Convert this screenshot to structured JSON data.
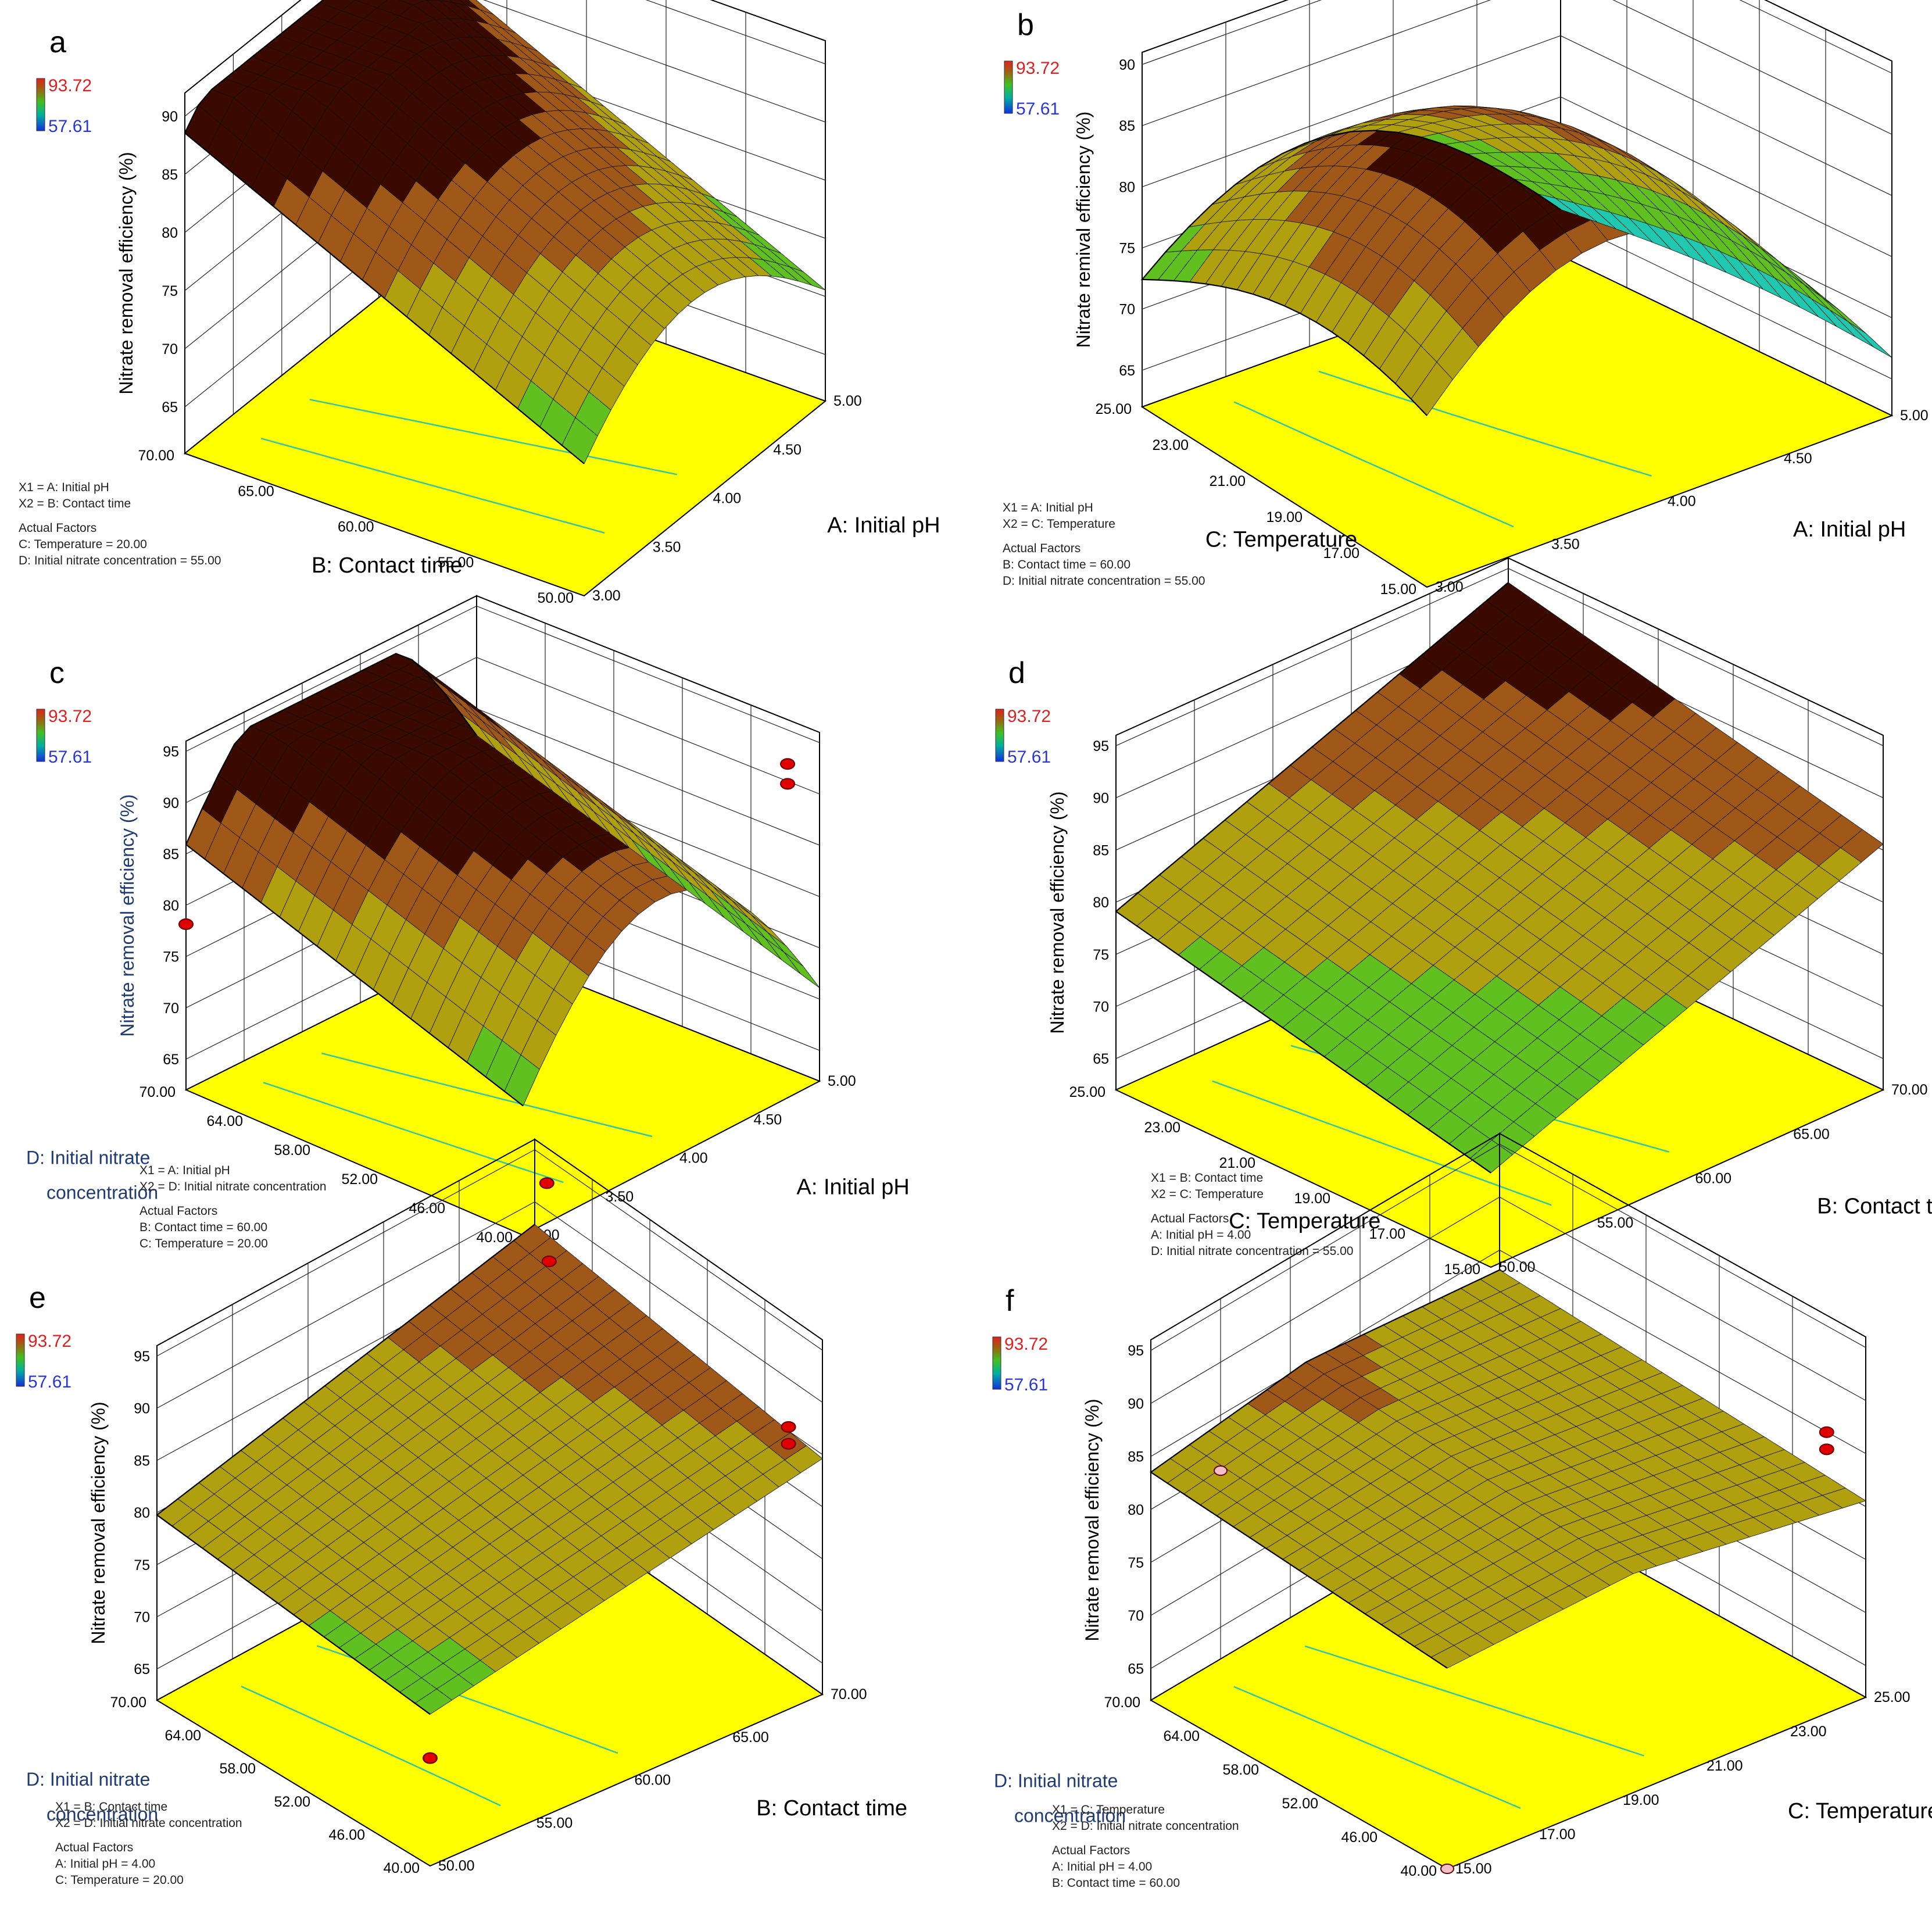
{
  "figure": {
    "colorbar_max": "93.72",
    "colorbar_min": "57.61",
    "surface_colors": [
      "#00c8c8",
      "#28d028",
      "#c8c000",
      "#b86020",
      "#300000"
    ]
  },
  "chart_data": [
    {
      "panel": "a",
      "type": "surface3d",
      "zlabel": "Nitrate removal efficiency (%)",
      "z_ticks": [
        "65",
        "70",
        "75",
        "80",
        "85",
        "90"
      ],
      "zlim": [
        61,
        92
      ],
      "left_axis": {
        "title": "B: Contact time",
        "ticks": [
          "70.00",
          "65.00",
          "60.00",
          "55.00",
          "50.00"
        ]
      },
      "right_axis": {
        "title": "A: Initial pH",
        "ticks": [
          "3.00",
          "3.50",
          "4.00",
          "4.50",
          "5.00"
        ]
      },
      "factors": [
        "X1 = A: Initial pH",
        "X2 = B: Contact time",
        "Actual Factors",
        "C: Temperature = 20.00",
        "D: Initial nitrate concentration = 55.00"
      ]
    },
    {
      "panel": "b",
      "type": "surface3d",
      "zlabel": "Nitrate remival efficiency (%)",
      "z_ticks": [
        "65",
        "70",
        "75",
        "80",
        "85",
        "90"
      ],
      "zlim": [
        62,
        91
      ],
      "left_axis": {
        "title": "C: Temperature",
        "ticks": [
          "25.00",
          "23.00",
          "21.00",
          "19.00",
          "17.00",
          "15.00"
        ]
      },
      "right_axis": {
        "title": "A: Initial pH",
        "ticks": [
          "3.00",
          "3.50",
          "4.00",
          "4.50",
          "5.00"
        ]
      },
      "factors": [
        "X1 = A: Initial pH",
        "X2 = C: Temperature",
        "Actual Factors",
        "B: Contact time  = 60.00",
        "D: Initial nitrate concentration = 55.00"
      ]
    },
    {
      "panel": "c",
      "type": "surface3d",
      "zlabel": "Nitrate removal efficiency (%)",
      "z_ticks": [
        "65",
        "70",
        "75",
        "80",
        "85",
        "90",
        "95"
      ],
      "zlim": [
        62,
        96
      ],
      "left_axis": {
        "title": "D: Initial nitrate",
        "title2": "concentration",
        "ticks": [
          "70.00",
          "64.00",
          "58.00",
          "52.00",
          "46.00",
          "40.00"
        ]
      },
      "right_axis": {
        "title": "A: Initial pH",
        "ticks": [
          "3.00",
          "3.50",
          "4.00",
          "4.50",
          "5.00"
        ]
      },
      "factors": [
        "X1 = A: Initial pH",
        "X2 = D: Initial nitrate concentration",
        "Actual Factors",
        "B: Contact time  = 60.00",
        "C: Temperature = 20.00"
      ]
    },
    {
      "panel": "d",
      "type": "surface3d",
      "zlabel": "Nitrate removal efficiency (%)",
      "z_ticks": [
        "65",
        "70",
        "75",
        "80",
        "85",
        "90",
        "95"
      ],
      "zlim": [
        62,
        96
      ],
      "left_axis": {
        "title": "C: Temperature",
        "ticks": [
          "25.00",
          "23.00",
          "21.00",
          "19.00",
          "17.00",
          "15.00"
        ]
      },
      "right_axis": {
        "title": "B: Contact time",
        "ticks": [
          "50.00",
          "55.00",
          "60.00",
          "65.00",
          "70.00"
        ]
      },
      "factors": [
        "X1 = B: Contact time",
        "X2 = C: Temperature",
        "Actual Factors",
        "A: Initial pH = 4.00",
        "D: Initial nitrate concentration = 55.00"
      ]
    },
    {
      "panel": "e",
      "type": "surface3d",
      "zlabel": "Nitrate removal efficiency (%)",
      "z_ticks": [
        "65",
        "70",
        "75",
        "80",
        "85",
        "90",
        "95"
      ],
      "zlim": [
        62,
        96
      ],
      "left_axis": {
        "title": "D: Initial nitrate",
        "title2": "concentration",
        "ticks": [
          "70.00",
          "64.00",
          "58.00",
          "52.00",
          "46.00",
          "40.00"
        ]
      },
      "right_axis": {
        "title": "B: Contact time",
        "ticks": [
          "50.00",
          "55.00",
          "60.00",
          "65.00",
          "70.00"
        ]
      },
      "factors": [
        "X1 = B: Contact time",
        "X2 = D: Initial nitrate concentration",
        "Actual Factors",
        "A: Initial pH = 4.00",
        "C: Temperature = 20.00"
      ]
    },
    {
      "panel": "f",
      "type": "surface3d",
      "zlabel": "Nitrate removal efficiency (%)",
      "z_ticks": [
        "65",
        "70",
        "75",
        "80",
        "85",
        "90",
        "95"
      ],
      "zlim": [
        62,
        96
      ],
      "left_axis": {
        "title": "D: Initial nitrate",
        "title2": "concentration",
        "ticks": [
          "70.00",
          "64.00",
          "58.00",
          "52.00",
          "46.00",
          "40.00"
        ]
      },
      "right_axis": {
        "title": "C: Temperature",
        "ticks": [
          "15.00",
          "17.00",
          "19.00",
          "21.00",
          "23.00",
          "25.00"
        ]
      },
      "factors": [
        "X1 = C: Temperature",
        "X2 = D: Initial nitrate concentration",
        "Actual Factors",
        "A: Initial pH = 4.00",
        "B: Contact time  = 60.00"
      ]
    }
  ]
}
